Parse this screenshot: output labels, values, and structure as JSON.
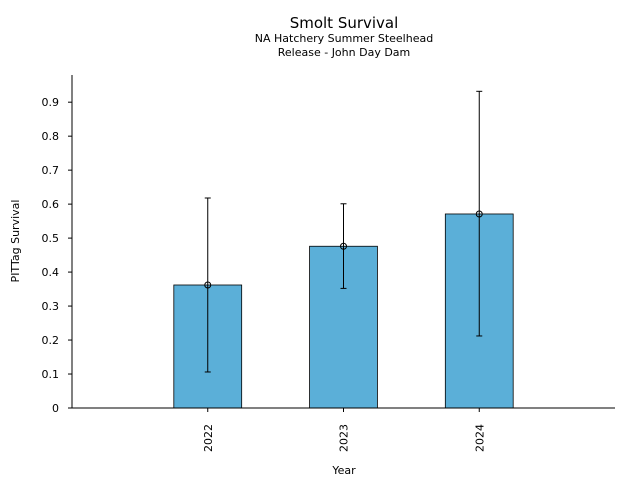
{
  "chart_data": {
    "type": "bar",
    "title": "Smolt Survival",
    "subtitle_lines": [
      "NA Hatchery Summer Steelhead",
      "Release - John Day Dam"
    ],
    "xlabel": "Year",
    "ylabel": "PITTag Survival",
    "categories": [
      "2022",
      "2023",
      "2024"
    ],
    "values": [
      0.362,
      0.476,
      0.571
    ],
    "error_low": [
      0.106,
      0.352,
      0.212
    ],
    "error_high": [
      0.618,
      0.601,
      0.932
    ],
    "ylim": [
      0,
      0.98
    ],
    "yticks": [
      0,
      0.1,
      0.2,
      0.3,
      0.4,
      0.5,
      0.6,
      0.7,
      0.8,
      0.9
    ],
    "ytick_labels": [
      "0",
      "0.1",
      "0.2",
      "0.3",
      "0.4",
      "0.5",
      "0.6",
      "0.7",
      "0.8",
      "0.9"
    ],
    "bar_color": "#5bafd8",
    "edge_color": "#000000",
    "grid": false,
    "legend": "none"
  }
}
